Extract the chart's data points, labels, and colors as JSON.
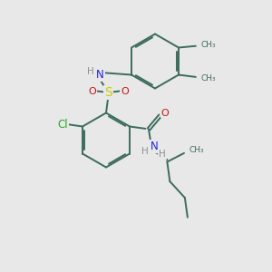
{
  "bg": "#e8e8e8",
  "bond_color": "#3d6b5e",
  "bw": 1.4,
  "atom_colors": {
    "H": "#909090",
    "N": "#2222dd",
    "O": "#cc1111",
    "S": "#cccc00",
    "Cl": "#22aa22",
    "C": "#3d6b5e"
  },
  "fs": 8.0,
  "xlim": [
    0,
    10
  ],
  "ylim": [
    0,
    10
  ]
}
